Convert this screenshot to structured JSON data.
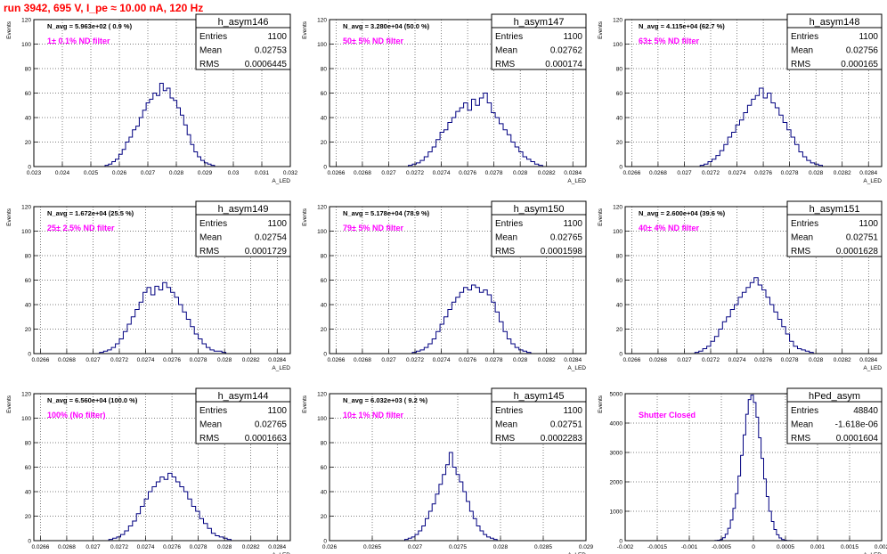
{
  "title": "run 3942,   695 V, I_pe ≈ 10.00 nA, 120 Hz",
  "colors": {
    "histogram": "#000080",
    "filter_text": "#ff00ff",
    "title": "#ff0000",
    "grid": "#000000"
  },
  "chart_data": [
    {
      "type": "histogram",
      "name": "h_asym146",
      "ylabel": "Events",
      "xlabel": "A_LED",
      "navg": "N_avg = 5.963e+02 ( 0.9 %)",
      "filter_label": "1± 0.1% ND filter",
      "stats": {
        "entries": "1100",
        "mean": "0.02753",
        "rms": "0.0006445"
      },
      "xlim": [
        0.023,
        0.032
      ],
      "ylim": [
        0,
        120
      ],
      "xticks": [
        0.023,
        0.024,
        0.025,
        0.026,
        0.027,
        0.028,
        0.029,
        0.03,
        0.031,
        0.032
      ],
      "xtick_labels": [
        "0.023",
        "0.024",
        "0.025",
        "0.026",
        "0.027",
        "0.028",
        "0.029",
        "0.03",
        "0.031",
        "0.032"
      ],
      "yticks": [
        0,
        20,
        40,
        60,
        80,
        100,
        120
      ],
      "ytick_labels": [
        "0",
        "20",
        "40",
        "60",
        "80",
        "100",
        "120"
      ],
      "bin_edges": [
        0.0255,
        0.0258
      ],
      "x_start": 0.0255,
      "bin_width": 0.00012,
      "counts": [
        1,
        2,
        4,
        6,
        10,
        14,
        20,
        24,
        30,
        33,
        40,
        46,
        52,
        55,
        60,
        58,
        68,
        62,
        64,
        56,
        54,
        48,
        42,
        34,
        26,
        18,
        12,
        8,
        5,
        3,
        2,
        1
      ]
    },
    {
      "type": "histogram",
      "name": "h_asym147",
      "ylabel": "Events",
      "xlabel": "A_LED",
      "navg": "N_avg = 3.280e+04 (50.0 %)",
      "filter_label": "50± 5% ND filter",
      "stats": {
        "entries": "1100",
        "mean": "0.02762",
        "rms": "0.000174"
      },
      "xlim": [
        0.02655,
        0.0285
      ],
      "ylim": [
        0,
        120
      ],
      "xticks": [
        0.0266,
        0.0268,
        0.027,
        0.0272,
        0.0274,
        0.0276,
        0.0278,
        0.028,
        0.0282,
        0.0284
      ],
      "xtick_labels": [
        "0.0266",
        "0.0268",
        "0.027",
        "0.0272",
        "0.0274",
        "0.0276",
        "0.0278",
        "0.028",
        "0.0282",
        "0.0284"
      ],
      "yticks": [
        0,
        20,
        40,
        60,
        80,
        100,
        120
      ],
      "ytick_labels": [
        "0",
        "20",
        "40",
        "60",
        "80",
        "100",
        "120"
      ],
      "x_start": 0.02715,
      "bin_width": 3e-05,
      "counts": [
        1,
        2,
        3,
        5,
        8,
        12,
        16,
        22,
        28,
        30,
        36,
        40,
        45,
        48,
        52,
        46,
        55,
        50,
        56,
        60,
        52,
        44,
        40,
        35,
        30,
        26,
        20,
        16,
        12,
        8,
        6,
        4,
        2,
        1
      ]
    },
    {
      "type": "histogram",
      "name": "h_asym148",
      "ylabel": "Events",
      "xlabel": "A_LED",
      "navg": "N_avg = 4.115e+04 (62.7 %)",
      "filter_label": "63± 5% ND filter",
      "stats": {
        "entries": "1100",
        "mean": "0.02756",
        "rms": "0.000165"
      },
      "xlim": [
        0.02655,
        0.0285
      ],
      "ylim": [
        0,
        120
      ],
      "xticks": [
        0.0266,
        0.0268,
        0.027,
        0.0272,
        0.0274,
        0.0276,
        0.0278,
        0.028,
        0.0282,
        0.0284
      ],
      "xtick_labels": [
        "0.0266",
        "0.0268",
        "0.027",
        "0.0272",
        "0.0274",
        "0.0276",
        "0.0278",
        "0.028",
        "0.0282",
        "0.0284"
      ],
      "yticks": [
        0,
        20,
        40,
        60,
        80,
        100,
        120
      ],
      "ytick_labels": [
        "0",
        "20",
        "40",
        "60",
        "80",
        "100",
        "120"
      ],
      "x_start": 0.02712,
      "bin_width": 3e-05,
      "counts": [
        1,
        2,
        4,
        6,
        9,
        13,
        18,
        24,
        28,
        34,
        38,
        44,
        50,
        55,
        58,
        64,
        56,
        60,
        52,
        48,
        42,
        36,
        30,
        24,
        18,
        12,
        8,
        5,
        3,
        2,
        1
      ]
    },
    {
      "type": "histogram",
      "name": "h_asym149",
      "ylabel": "Events",
      "xlabel": "A_LED",
      "navg": "N_avg = 1.672e+04 (25.5 %)",
      "filter_label": "25± 2.5% ND filter",
      "stats": {
        "entries": "1100",
        "mean": "0.02754",
        "rms": "0.0001729"
      },
      "xlim": [
        0.02655,
        0.0285
      ],
      "ylim": [
        0,
        120
      ],
      "xticks": [
        0.0266,
        0.0268,
        0.027,
        0.0272,
        0.0274,
        0.0276,
        0.0278,
        0.028,
        0.0282,
        0.0284
      ],
      "xtick_labels": [
        "0.0266",
        "0.0268",
        "0.027",
        "0.0272",
        "0.0274",
        "0.0276",
        "0.0278",
        "0.028",
        "0.0282",
        "0.0284"
      ],
      "yticks": [
        0,
        20,
        40,
        60,
        80,
        100,
        120
      ],
      "ytick_labels": [
        "0",
        "20",
        "40",
        "60",
        "80",
        "100",
        "120"
      ],
      "x_start": 0.02705,
      "bin_width": 3e-05,
      "counts": [
        1,
        2,
        3,
        5,
        8,
        12,
        18,
        24,
        30,
        36,
        42,
        50,
        54,
        48,
        55,
        52,
        58,
        54,
        50,
        46,
        40,
        34,
        28,
        22,
        16,
        12,
        8,
        5,
        3,
        2,
        2,
        1
      ]
    },
    {
      "type": "histogram",
      "name": "h_asym150",
      "ylabel": "Events",
      "xlabel": "A_LED",
      "navg": "N_avg = 5.178e+04 (78.9 %)",
      "filter_label": "79± 5% ND filter",
      "stats": {
        "entries": "1100",
        "mean": "0.02765",
        "rms": "0.0001598"
      },
      "xlim": [
        0.02655,
        0.0285
      ],
      "ylim": [
        0,
        120
      ],
      "xticks": [
        0.0266,
        0.0268,
        0.027,
        0.0272,
        0.0274,
        0.0276,
        0.0278,
        0.028,
        0.0282,
        0.0284
      ],
      "xtick_labels": [
        "0.0266",
        "0.0268",
        "0.027",
        "0.0272",
        "0.0274",
        "0.0276",
        "0.0278",
        "0.028",
        "0.0282",
        "0.0284"
      ],
      "yticks": [
        0,
        20,
        40,
        60,
        80,
        100,
        120
      ],
      "ytick_labels": [
        "0",
        "20",
        "40",
        "60",
        "80",
        "100",
        "120"
      ],
      "x_start": 0.02718,
      "bin_width": 3e-05,
      "counts": [
        1,
        2,
        3,
        5,
        8,
        12,
        18,
        24,
        30,
        36,
        42,
        46,
        50,
        54,
        52,
        56,
        54,
        50,
        52,
        48,
        42,
        34,
        26,
        18,
        12,
        8,
        5,
        3,
        2,
        1
      ]
    },
    {
      "type": "histogram",
      "name": "h_asym151",
      "ylabel": "Events",
      "xlabel": "A_LED",
      "navg": "N_avg = 2.600e+04 (39.6 %)",
      "filter_label": "40± 4% ND filter",
      "stats": {
        "entries": "1100",
        "mean": "0.02751",
        "rms": "0.0001628"
      },
      "xlim": [
        0.02655,
        0.0285
      ],
      "ylim": [
        0,
        120
      ],
      "xticks": [
        0.0266,
        0.0268,
        0.027,
        0.0272,
        0.0274,
        0.0276,
        0.0278,
        0.028,
        0.0282,
        0.0284
      ],
      "xtick_labels": [
        "0.0266",
        "0.0268",
        "0.027",
        "0.0272",
        "0.0274",
        "0.0276",
        "0.0278",
        "0.028",
        "0.0282",
        "0.0284"
      ],
      "yticks": [
        0,
        20,
        40,
        60,
        80,
        100,
        120
      ],
      "ytick_labels": [
        "0",
        "20",
        "40",
        "60",
        "80",
        "100",
        "120"
      ],
      "x_start": 0.02708,
      "bin_width": 3e-05,
      "counts": [
        1,
        2,
        4,
        6,
        10,
        14,
        20,
        26,
        30,
        36,
        40,
        46,
        50,
        54,
        58,
        62,
        56,
        52,
        46,
        40,
        34,
        28,
        22,
        16,
        10,
        6,
        4,
        3,
        2,
        1
      ]
    },
    {
      "type": "histogram",
      "name": "h_asym144",
      "ylabel": "Events",
      "xlabel": "A_LED",
      "navg": "N_avg = 6.560e+04 (100.0 %)",
      "filter_label": "100% (No filter)",
      "stats": {
        "entries": "1100",
        "mean": "0.02765",
        "rms": "0.0001663"
      },
      "xlim": [
        0.02655,
        0.0285
      ],
      "ylim": [
        0,
        120
      ],
      "xticks": [
        0.0266,
        0.0268,
        0.027,
        0.0272,
        0.0274,
        0.0276,
        0.0278,
        0.028,
        0.0282,
        0.0284
      ],
      "xtick_labels": [
        "0.0266",
        "0.0268",
        "0.027",
        "0.0272",
        "0.0274",
        "0.0276",
        "0.0278",
        "0.028",
        "0.0282",
        "0.0284"
      ],
      "yticks": [
        0,
        20,
        40,
        60,
        80,
        100,
        120
      ],
      "ytick_labels": [
        "0",
        "20",
        "40",
        "60",
        "80",
        "100",
        "120"
      ],
      "x_start": 0.02712,
      "bin_width": 3e-05,
      "counts": [
        1,
        2,
        3,
        5,
        8,
        12,
        16,
        22,
        28,
        34,
        40,
        44,
        48,
        52,
        50,
        55,
        52,
        48,
        44,
        40,
        34,
        28,
        24,
        18,
        14,
        10,
        6,
        4,
        3,
        2,
        1
      ]
    },
    {
      "type": "histogram",
      "name": "h_asym145",
      "ylabel": "Events",
      "xlabel": "A_LED",
      "navg": "N_avg = 6.032e+03 ( 9.2 %)",
      "filter_label": "10± 1% ND filter",
      "stats": {
        "entries": "1100",
        "mean": "0.02751",
        "rms": "0.0002283"
      },
      "xlim": [
        0.026,
        0.029
      ],
      "ylim": [
        0,
        120
      ],
      "xticks": [
        0.026,
        0.0265,
        0.027,
        0.0275,
        0.028,
        0.0285,
        0.029
      ],
      "xtick_labels": [
        "0.026",
        "0.0265",
        "0.027",
        "0.0275",
        "0.028",
        "0.0285",
        "0.029"
      ],
      "yticks": [
        0,
        20,
        40,
        60,
        80,
        100,
        120
      ],
      "ytick_labels": [
        "0",
        "20",
        "40",
        "60",
        "80",
        "100",
        "120"
      ],
      "x_start": 0.02688,
      "bin_width": 4e-05,
      "counts": [
        1,
        2,
        3,
        5,
        8,
        12,
        18,
        24,
        30,
        38,
        46,
        54,
        62,
        72,
        60,
        54,
        48,
        40,
        32,
        24,
        18,
        12,
        8,
        5,
        3,
        2,
        1
      ]
    },
    {
      "type": "histogram",
      "name": "hPed_asym",
      "ylabel": "Events",
      "xlabel": "A_LED",
      "navg": "",
      "filter_label": "Shutter Closed",
      "stats": {
        "entries": "48840",
        "mean": "-1.618e-06",
        "rms": "0.0001604"
      },
      "xlim": [
        -0.002,
        0.002
      ],
      "ylim": [
        0,
        5000
      ],
      "xticks": [
        -0.002,
        -0.0015,
        -0.001,
        -0.0005,
        0,
        0.0005,
        0.001,
        0.0015,
        0.002
      ],
      "xtick_labels": [
        "-0.002",
        "-0.0015",
        "-0.001",
        "-0.0005",
        "0",
        "0.0005",
        "0.001",
        "0.0015",
        "0.002"
      ],
      "yticks": [
        0,
        1000,
        2000,
        3000,
        4000,
        5000
      ],
      "ytick_labels": [
        "0",
        "1000",
        "2000",
        "3000",
        "4000",
        "5000"
      ],
      "x_start": -0.0006,
      "bin_width": 4e-05,
      "counts": [
        5,
        15,
        40,
        100,
        220,
        420,
        700,
        1100,
        1600,
        2200,
        2900,
        3600,
        4300,
        4800,
        4950,
        4700,
        4200,
        3500,
        2800,
        2100,
        1500,
        1000,
        650,
        380,
        200,
        90,
        35,
        12,
        4,
        2
      ]
    }
  ]
}
